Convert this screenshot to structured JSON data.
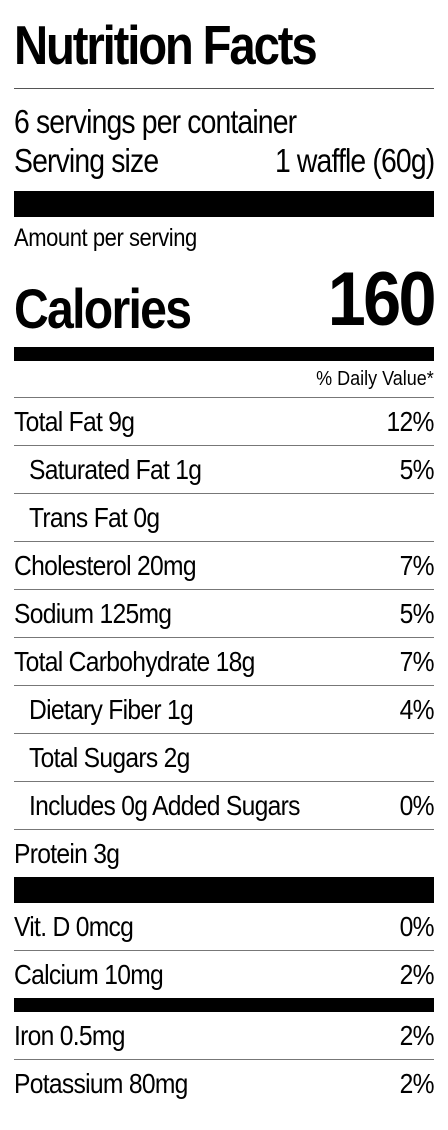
{
  "label": {
    "title": "Nutrition Facts",
    "servings_per_container": "6 servings per container",
    "serving_size_label": "Serving size",
    "serving_size_value": "1 waffle (60g)",
    "amount_per_serving": "Amount per serving",
    "calories_label": "Calories",
    "calories_value": "160",
    "daily_value_header": "% Daily Value*"
  },
  "nutrients": [
    {
      "name": "Total Fat 9g",
      "dv": "12%"
    },
    {
      "name": "Saturated Fat 1g",
      "dv": "5%"
    },
    {
      "name": "Trans Fat 0g",
      "dv": ""
    },
    {
      "name": "Cholesterol 20mg",
      "dv": "7%"
    },
    {
      "name": "Sodium 125mg",
      "dv": "5%"
    },
    {
      "name": "Total Carbohydrate 18g",
      "dv": "7%"
    },
    {
      "name": "Dietary Fiber 1g",
      "dv": "4%"
    },
    {
      "name": "Total Sugars 2g",
      "dv": ""
    },
    {
      "name": "Includes 0g Added Sugars",
      "dv": "0%"
    },
    {
      "name": "Protein 3g",
      "dv": ""
    }
  ],
  "vitamins": [
    {
      "name": "Vit. D 0mcg",
      "dv": "0%"
    },
    {
      "name": "Calcium 10mg",
      "dv": "2%"
    },
    {
      "name": "Iron 0.5mg",
      "dv": "2%"
    },
    {
      "name": "Potassium 80mg",
      "dv": "2%"
    }
  ]
}
